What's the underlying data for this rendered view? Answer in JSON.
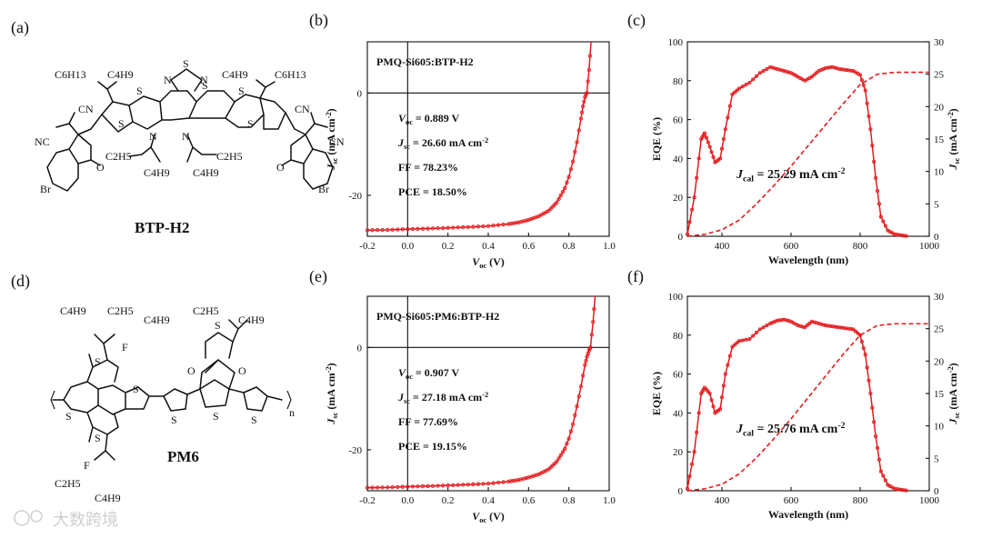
{
  "panels": {
    "a": {
      "label": "(a)",
      "molecule_name": "BTP-H2",
      "atoms": {
        "S": "S",
        "N": "N",
        "O": "O",
        "Br": "Br",
        "CN": "CN",
        "NC": "NC",
        "c6h13": "C6H13",
        "c4h9": "C4H9",
        "c2h5": "C2H5"
      }
    },
    "d": {
      "label": "(d)",
      "molecule_name": "PM6",
      "atoms": {
        "S": "S",
        "O": "O",
        "F": "F",
        "n": "n",
        "c4h9": "C4H9",
        "c2h5": "C2H5"
      }
    },
    "b": {
      "label": "(b)"
    },
    "c": {
      "label": "(c)"
    },
    "e": {
      "label": "(e)"
    },
    "f": {
      "label": "(f)"
    }
  },
  "watermark": {
    "text": "大数跨境"
  },
  "chart_data": [
    {
      "id": "b",
      "type": "line",
      "title": "PMQ-Si605:BTP-H2",
      "xlabel": "Voc (V)",
      "ylabel": "Jsc (mA cm-2)",
      "xlim": [
        -0.2,
        1.0
      ],
      "ylim": [
        -28,
        10
      ],
      "xticks": [
        -0.2,
        0.0,
        0.2,
        0.4,
        0.6,
        0.8,
        1.0
      ],
      "xtick_labels": [
        "-0.2",
        "0.0",
        "0.2",
        "0.4",
        "0.6",
        "0.8",
        "1.0"
      ],
      "yticks": [
        0,
        -20
      ],
      "ytick_labels": [
        "0",
        "-20"
      ],
      "annotations": [
        "Voc = 0.889 V",
        "Jsc = 26.60 mA cm-2",
        "FF = 78.23%",
        "PCE = 18.50%"
      ],
      "series": [
        {
          "x": [
            -0.2,
            -0.1,
            0.0,
            0.1,
            0.2,
            0.3,
            0.4,
            0.5,
            0.55,
            0.6,
            0.65,
            0.7,
            0.74,
            0.78,
            0.8,
            0.82,
            0.84,
            0.86,
            0.87,
            0.88,
            0.889,
            0.9,
            0.91
          ],
          "y": [
            -26.8,
            -26.75,
            -26.6,
            -26.5,
            -26.35,
            -26.2,
            -26.0,
            -25.6,
            -25.3,
            -24.8,
            -24.1,
            -23.0,
            -21.4,
            -18.6,
            -16.4,
            -13.4,
            -9.6,
            -5.0,
            -2.6,
            -0.8,
            0.0,
            4.5,
            10.0
          ]
        }
      ]
    },
    {
      "id": "c",
      "type": "line",
      "xlabel": "Wavelength (nm)",
      "ylabel": "EQE (%)",
      "y2label": "Jsc (mA cm-2)",
      "xlim": [
        300,
        1000
      ],
      "ylim": [
        0,
        100
      ],
      "y2lim": [
        0,
        30
      ],
      "xticks": [
        400,
        600,
        800,
        1000
      ],
      "xtick_labels": [
        "400",
        "600",
        "800",
        "1000"
      ],
      "yticks": [
        0,
        20,
        40,
        60,
        80,
        100
      ],
      "ytick_labels": [
        "0",
        "20",
        "40",
        "60",
        "80",
        "100"
      ],
      "y2ticks": [
        0,
        5,
        10,
        15,
        20,
        25,
        30
      ],
      "y2tick_labels": [
        "0",
        "5",
        "10",
        "15",
        "20",
        "25",
        "30"
      ],
      "annotations": [
        "Jcal = 25.29 mA cm-2"
      ],
      "series": [
        {
          "axis": "left",
          "x": [
            300,
            320,
            340,
            350,
            365,
            380,
            395,
            410,
            430,
            450,
            480,
            510,
            540,
            560,
            580,
            600,
            620,
            640,
            660,
            680,
            700,
            720,
            740,
            760,
            780,
            800,
            815,
            830,
            845,
            860,
            880,
            900,
            920,
            940
          ],
          "y": [
            1,
            20,
            50,
            53,
            46,
            38,
            40,
            55,
            73,
            76,
            79,
            84,
            87,
            86,
            85,
            84,
            82,
            80,
            82,
            85,
            86.5,
            87,
            86,
            85.5,
            85,
            83,
            75,
            55,
            30,
            10,
            3,
            1,
            0.5,
            0
          ]
        },
        {
          "axis": "right",
          "x": [
            300,
            350,
            400,
            450,
            500,
            550,
            600,
            650,
            700,
            750,
            800,
            850,
            900,
            950,
            1000
          ],
          "y": [
            0,
            0.3,
            1.0,
            2.5,
            5.0,
            7.8,
            10.8,
            14.0,
            17.2,
            20.4,
            23.4,
            25.0,
            25.29,
            25.29,
            25.29
          ]
        }
      ]
    },
    {
      "id": "e",
      "type": "line",
      "title": "PMQ-Si605:PM6:BTP-H2",
      "xlabel": "Voc (V)",
      "ylabel": "Jsc (mA cm-2)",
      "xlim": [
        -0.2,
        1.0
      ],
      "ylim": [
        -28,
        10
      ],
      "xticks": [
        -0.2,
        0.0,
        0.2,
        0.4,
        0.6,
        0.8,
        1.0
      ],
      "xtick_labels": [
        "-0.2",
        "0.0",
        "0.2",
        "0.4",
        "0.6",
        "0.8",
        "1.0"
      ],
      "yticks": [
        0,
        -20
      ],
      "ytick_labels": [
        "0",
        "-20"
      ],
      "annotations": [
        "Voc = 0.907 V",
        "Jsc = 27.18 mA cm-2",
        "FF = 77.69%",
        "PCE = 19.15%"
      ],
      "series": [
        {
          "x": [
            -0.2,
            -0.1,
            0.0,
            0.1,
            0.2,
            0.3,
            0.4,
            0.5,
            0.55,
            0.6,
            0.65,
            0.7,
            0.74,
            0.78,
            0.8,
            0.82,
            0.84,
            0.86,
            0.88,
            0.89,
            0.9,
            0.907,
            0.92,
            0.93
          ],
          "y": [
            -27.4,
            -27.35,
            -27.2,
            -27.1,
            -26.95,
            -26.8,
            -26.6,
            -26.2,
            -25.9,
            -25.4,
            -24.8,
            -23.8,
            -22.3,
            -19.8,
            -17.8,
            -15.0,
            -11.5,
            -7.6,
            -3.4,
            -1.8,
            -0.6,
            0.0,
            5.0,
            10.0
          ]
        }
      ]
    },
    {
      "id": "f",
      "type": "line",
      "xlabel": "Wavelength (nm)",
      "ylabel": "EQE (%)",
      "y2label": "Jsc (mA cm-2)",
      "xlim": [
        300,
        1000
      ],
      "ylim": [
        0,
        100
      ],
      "y2lim": [
        0,
        30
      ],
      "xticks": [
        400,
        600,
        800,
        1000
      ],
      "xtick_labels": [
        "400",
        "600",
        "800",
        "1000"
      ],
      "yticks": [
        0,
        20,
        40,
        60,
        80,
        100
      ],
      "ytick_labels": [
        "0",
        "20",
        "40",
        "60",
        "80",
        "100"
      ],
      "y2ticks": [
        0,
        5,
        10,
        15,
        20,
        25,
        30
      ],
      "y2tick_labels": [
        "0",
        "5",
        "10",
        "15",
        "20",
        "25",
        "30"
      ],
      "annotations": [
        "Jcal = 25.76 mA cm-2"
      ],
      "series": [
        {
          "axis": "left",
          "x": [
            300,
            320,
            340,
            350,
            365,
            380,
            395,
            410,
            430,
            450,
            480,
            510,
            540,
            560,
            580,
            600,
            620,
            640,
            660,
            680,
            700,
            720,
            740,
            760,
            780,
            800,
            815,
            830,
            845,
            860,
            880,
            900,
            920,
            940
          ],
          "y": [
            1,
            20,
            50,
            53,
            50,
            40,
            42,
            60,
            74,
            77,
            78,
            83,
            86,
            87.5,
            88,
            87,
            85,
            84,
            87,
            86,
            85,
            84.5,
            84,
            83.5,
            83,
            80,
            70,
            50,
            28,
            10,
            3,
            1,
            0.5,
            0
          ]
        },
        {
          "axis": "right",
          "x": [
            300,
            350,
            400,
            450,
            500,
            550,
            600,
            650,
            700,
            750,
            800,
            850,
            900,
            950,
            1000
          ],
          "y": [
            0,
            0.3,
            1.0,
            2.6,
            5.1,
            8.0,
            11.1,
            14.4,
            17.7,
            21.0,
            24.0,
            25.5,
            25.76,
            25.76,
            25.76
          ]
        }
      ]
    }
  ]
}
